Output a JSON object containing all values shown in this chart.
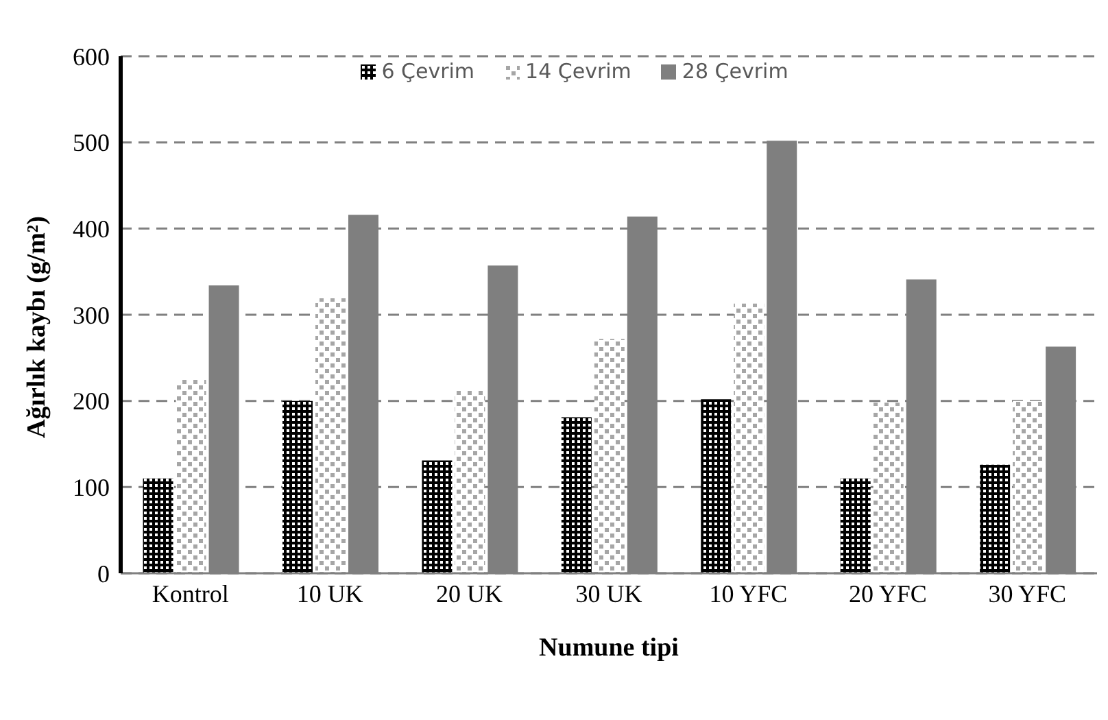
{
  "chart_data": {
    "type": "bar",
    "xlabel": "Numune tipi",
    "ylabel": "Ağırlık kaybı (g/m²)",
    "categories": [
      "Kontrol",
      "10 UK",
      "20 UK",
      "30 UK",
      "10 YFC",
      "20 YFC",
      "30 YFC"
    ],
    "series": [
      {
        "name": "6 Çevrim",
        "color": "#000000",
        "values": [
          110,
          200,
          131,
          181,
          202,
          110,
          126
        ]
      },
      {
        "name": "14 Çevrim",
        "color": "#a6a6a6",
        "values": [
          225,
          319,
          213,
          272,
          313,
          198,
          200
        ]
      },
      {
        "name": "28 Çevrim",
        "color": "#7f7f7f",
        "values": [
          334,
          416,
          357,
          414,
          502,
          341,
          263
        ]
      }
    ],
    "ylim": [
      0,
      600
    ],
    "yticks": [
      0,
      100,
      200,
      300,
      400,
      500,
      600
    ],
    "grid": "y",
    "legend": "top"
  }
}
